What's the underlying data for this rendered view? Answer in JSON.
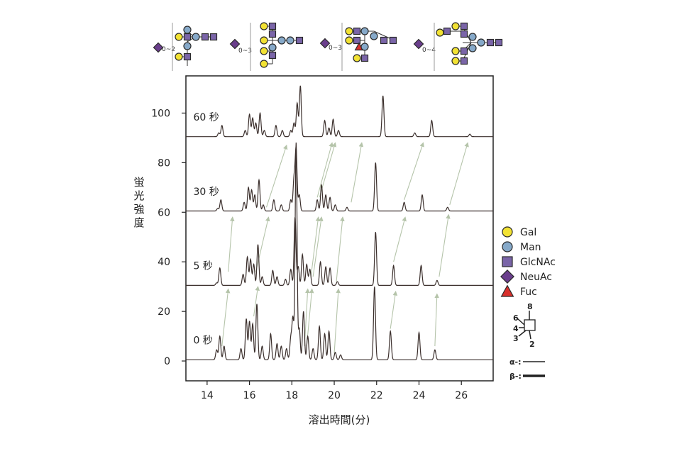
{
  "chart_data": {
    "type": "line",
    "xlabel": "溶出時間(分)",
    "ylabel": "蛍光強度",
    "xlim": [
      13,
      27.5
    ],
    "ylim": [
      -8,
      115
    ],
    "x_ticks": [
      14,
      16,
      18,
      20,
      22,
      24,
      26
    ],
    "y_ticks": [
      0,
      20,
      40,
      60,
      80,
      100
    ],
    "grid": false,
    "series": [
      {
        "name": "0 秒",
        "baseline": 0.5,
        "peaks": [
          {
            "x": 14.45,
            "y": 4.5
          },
          {
            "x": 14.6,
            "y": 10
          },
          {
            "x": 14.8,
            "y": 6
          },
          {
            "x": 15.6,
            "y": 5
          },
          {
            "x": 15.85,
            "y": 17
          },
          {
            "x": 16.0,
            "y": 16
          },
          {
            "x": 16.15,
            "y": 15
          },
          {
            "x": 16.35,
            "y": 23
          },
          {
            "x": 16.6,
            "y": 6
          },
          {
            "x": 17.0,
            "y": 11
          },
          {
            "x": 17.3,
            "y": 7
          },
          {
            "x": 17.5,
            "y": 6
          },
          {
            "x": 17.75,
            "y": 5
          },
          {
            "x": 17.95,
            "y": 9
          },
          {
            "x": 18.05,
            "y": 17
          },
          {
            "x": 18.2,
            "y": 88
          },
          {
            "x": 18.35,
            "y": 13
          },
          {
            "x": 18.55,
            "y": 20
          },
          {
            "x": 18.75,
            "y": 10
          },
          {
            "x": 19.0,
            "y": 5
          },
          {
            "x": 19.3,
            "y": 14
          },
          {
            "x": 19.55,
            "y": 11
          },
          {
            "x": 19.75,
            "y": 12
          },
          {
            "x": 20.05,
            "y": 3.5
          },
          {
            "x": 20.3,
            "y": 2.5
          },
          {
            "x": 21.9,
            "y": 30
          },
          {
            "x": 22.65,
            "y": 12
          },
          {
            "x": 24.0,
            "y": 11.5
          },
          {
            "x": 24.75,
            "y": 4.5
          }
        ]
      },
      {
        "name": "5 秒",
        "baseline": 30.5,
        "peaks": [
          {
            "x": 14.45,
            "y": 31.5
          },
          {
            "x": 14.6,
            "y": 37.5
          },
          {
            "x": 15.7,
            "y": 35
          },
          {
            "x": 15.9,
            "y": 42
          },
          {
            "x": 16.05,
            "y": 41
          },
          {
            "x": 16.2,
            "y": 39
          },
          {
            "x": 16.4,
            "y": 47
          },
          {
            "x": 16.6,
            "y": 34
          },
          {
            "x": 17.1,
            "y": 36.5
          },
          {
            "x": 17.3,
            "y": 34
          },
          {
            "x": 17.7,
            "y": 33
          },
          {
            "x": 17.95,
            "y": 37
          },
          {
            "x": 18.15,
            "y": 58
          },
          {
            "x": 18.3,
            "y": 38
          },
          {
            "x": 18.5,
            "y": 43
          },
          {
            "x": 18.7,
            "y": 39
          },
          {
            "x": 18.85,
            "y": 37
          },
          {
            "x": 19.35,
            "y": 40
          },
          {
            "x": 19.6,
            "y": 38
          },
          {
            "x": 19.8,
            "y": 37.5
          },
          {
            "x": 20.15,
            "y": 32
          },
          {
            "x": 21.95,
            "y": 52
          },
          {
            "x": 22.8,
            "y": 38.5
          },
          {
            "x": 24.1,
            "y": 38.5
          },
          {
            "x": 24.85,
            "y": 32.5
          }
        ]
      },
      {
        "name": "30 秒",
        "baseline": 60.5,
        "peaks": [
          {
            "x": 14.5,
            "y": 61.5
          },
          {
            "x": 14.65,
            "y": 65
          },
          {
            "x": 15.75,
            "y": 64
          },
          {
            "x": 15.95,
            "y": 70
          },
          {
            "x": 16.1,
            "y": 69
          },
          {
            "x": 16.25,
            "y": 67
          },
          {
            "x": 16.45,
            "y": 73
          },
          {
            "x": 16.65,
            "y": 63
          },
          {
            "x": 17.15,
            "y": 65
          },
          {
            "x": 17.5,
            "y": 63
          },
          {
            "x": 17.95,
            "y": 65
          },
          {
            "x": 18.1,
            "y": 73
          },
          {
            "x": 18.2,
            "y": 85
          },
          {
            "x": 18.35,
            "y": 67
          },
          {
            "x": 19.2,
            "y": 65
          },
          {
            "x": 19.4,
            "y": 71
          },
          {
            "x": 19.6,
            "y": 67
          },
          {
            "x": 19.8,
            "y": 66
          },
          {
            "x": 20.05,
            "y": 63
          },
          {
            "x": 20.6,
            "y": 62
          },
          {
            "x": 21.95,
            "y": 80
          },
          {
            "x": 23.3,
            "y": 64
          },
          {
            "x": 24.15,
            "y": 67
          },
          {
            "x": 25.35,
            "y": 62
          }
        ]
      },
      {
        "name": "60 秒",
        "baseline": 90.5,
        "peaks": [
          {
            "x": 14.55,
            "y": 92
          },
          {
            "x": 14.7,
            "y": 95
          },
          {
            "x": 15.8,
            "y": 93
          },
          {
            "x": 16.0,
            "y": 99.5
          },
          {
            "x": 16.15,
            "y": 98
          },
          {
            "x": 16.3,
            "y": 96
          },
          {
            "x": 16.5,
            "y": 100
          },
          {
            "x": 16.7,
            "y": 93
          },
          {
            "x": 17.25,
            "y": 95
          },
          {
            "x": 17.55,
            "y": 93
          },
          {
            "x": 17.95,
            "y": 93
          },
          {
            "x": 18.1,
            "y": 96
          },
          {
            "x": 18.25,
            "y": 104
          },
          {
            "x": 18.4,
            "y": 111
          },
          {
            "x": 19.55,
            "y": 97
          },
          {
            "x": 19.75,
            "y": 94
          },
          {
            "x": 19.95,
            "y": 97.5
          },
          {
            "x": 20.2,
            "y": 93
          },
          {
            "x": 22.3,
            "y": 107
          },
          {
            "x": 23.8,
            "y": 92
          },
          {
            "x": 24.6,
            "y": 97
          },
          {
            "x": 26.4,
            "y": 91.5
          }
        ]
      }
    ],
    "shift_arrows": [
      {
        "from": [
          14.7,
          6
        ],
        "to": [
          15.0,
          29
        ]
      },
      {
        "from": [
          15.0,
          36
        ],
        "to": [
          15.2,
          58
        ]
      },
      {
        "from": [
          16.2,
          18
        ],
        "to": [
          16.4,
          30
        ]
      },
      {
        "from": [
          16.3,
          36
        ],
        "to": [
          16.9,
          58
        ]
      },
      {
        "from": [
          16.8,
          62
        ],
        "to": [
          17.75,
          87
        ]
      },
      {
        "from": [
          18.6,
          6
        ],
        "to": [
          18.75,
          29
        ]
      },
      {
        "from": [
          18.7,
          6
        ],
        "to": [
          18.95,
          29
        ]
      },
      {
        "from": [
          18.9,
          34
        ],
        "to": [
          19.25,
          58
        ]
      },
      {
        "from": [
          19.0,
          34
        ],
        "to": [
          19.4,
          58
        ]
      },
      {
        "from": [
          19.2,
          66
        ],
        "to": [
          19.9,
          88
        ]
      },
      {
        "from": [
          19.3,
          66
        ],
        "to": [
          20.05,
          88
        ]
      },
      {
        "from": [
          20.1,
          32
        ],
        "to": [
          20.4,
          58
        ]
      },
      {
        "from": [
          20.0,
          3
        ],
        "to": [
          20.2,
          29
        ]
      },
      {
        "from": [
          20.8,
          64
        ],
        "to": [
          21.3,
          88
        ]
      },
      {
        "from": [
          22.65,
          13
        ],
        "to": [
          22.9,
          28
        ]
      },
      {
        "from": [
          22.8,
          40
        ],
        "to": [
          23.35,
          58
        ]
      },
      {
        "from": [
          23.3,
          65
        ],
        "to": [
          24.2,
          88
        ]
      },
      {
        "from": [
          24.75,
          6
        ],
        "to": [
          24.85,
          27
        ]
      },
      {
        "from": [
          24.95,
          34
        ],
        "to": [
          25.4,
          59
        ]
      },
      {
        "from": [
          25.45,
          63
        ],
        "to": [
          26.3,
          88
        ]
      }
    ]
  },
  "legend": [
    {
      "label": "Gal",
      "shape": "circle",
      "color": "#f2e233"
    },
    {
      "label": "Man",
      "shape": "circle",
      "color": "#86a9c9"
    },
    {
      "label": "GlcNAc",
      "shape": "square",
      "color": "#7a65a8"
    },
    {
      "label": "NeuAc",
      "shape": "diamond",
      "color": "#6a3e8c"
    },
    {
      "label": "Fuc",
      "shape": "triangle",
      "color": "#d9302c"
    }
  ],
  "linkage_key": {
    "positions": [
      "6",
      "8",
      "4",
      "3",
      "2"
    ],
    "alpha_label": "α-:",
    "beta_label": "β-:"
  },
  "glycan_labels": [
    "0~2",
    "0~3",
    "0~3",
    "0~4"
  ],
  "colors": {
    "trace": "#3b2f2c",
    "arrow": "#b5c4aa",
    "symbol_stroke": "#2a2a2a"
  }
}
